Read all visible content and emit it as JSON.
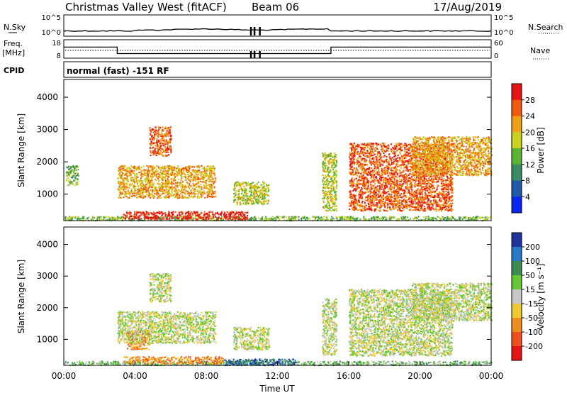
{
  "header": {
    "title": "Christmas Valley West (fitACF)",
    "beam": "Beam 06",
    "date": "17/Aug/2019"
  },
  "left_labels": {
    "nsky": "N.Sky",
    "freq_line1": "Freq.",
    "freq_line2": "[MHz]",
    "cpid": "CPID"
  },
  "right_labels": {
    "nsearch": "N.Search",
    "nave": "Nave"
  },
  "status_panel": {
    "nsky_ticks": [
      "10^5",
      "10^0"
    ],
    "nsearch_ticks": [
      "10^5",
      "10^0"
    ],
    "freq_ticks": [
      "18",
      "8"
    ],
    "nave_ticks": [
      "60",
      "0"
    ],
    "cpid_text": "normal (fast) -151 RF",
    "freq_mhz_schedule": [
      {
        "start_h": 0.0,
        "end_h": 3.0,
        "freq": 14.0
      },
      {
        "start_h": 3.0,
        "end_h": 15.0,
        "freq": 10.5
      },
      {
        "start_h": 15.0,
        "end_h": 24.0,
        "freq": 14.0
      }
    ],
    "data_gaps_h": [
      10.5,
      10.7,
      11.0
    ]
  },
  "chart_data": [
    {
      "type": "heatmap",
      "name": "power-panel",
      "ylabel": "Slant Range [km]",
      "xlabel": "",
      "ylim": [
        180,
        4550
      ],
      "xlim": [
        0,
        24
      ],
      "yticks": [
        "1000",
        "2000",
        "3000",
        "4000"
      ],
      "colorbar": {
        "label": "Power [dB]",
        "ticks": [
          "4",
          "8",
          "12",
          "16",
          "20",
          "24",
          "28"
        ],
        "range": [
          0,
          30
        ],
        "colors": [
          "#0a28f0",
          "#1e5aa8",
          "#3a8c64",
          "#5ab432",
          "#c8d21e",
          "#f0a014",
          "#f05a0a",
          "#e61414"
        ]
      },
      "echo_regions": [
        {
          "t0": 0.0,
          "t1": 24.0,
          "r0": 200,
          "r1": 330,
          "level": 3
        },
        {
          "t0": 3.3,
          "t1": 10.3,
          "r0": 240,
          "r1": 480,
          "level": 7
        },
        {
          "t0": 3.0,
          "t1": 8.5,
          "r0": 900,
          "r1": 1900,
          "level": 5
        },
        {
          "t0": 4.8,
          "t1": 6.0,
          "r0": 2200,
          "r1": 3100,
          "level": 6
        },
        {
          "t0": 0.1,
          "t1": 0.8,
          "r0": 1300,
          "r1": 1900,
          "level": 3
        },
        {
          "t0": 9.5,
          "t1": 11.5,
          "r0": 700,
          "r1": 1400,
          "level": 4
        },
        {
          "t0": 14.5,
          "t1": 15.3,
          "r0": 500,
          "r1": 2300,
          "level": 4
        },
        {
          "t0": 16.0,
          "t1": 21.8,
          "r0": 500,
          "r1": 2600,
          "level": 6
        },
        {
          "t0": 19.5,
          "t1": 24.0,
          "r0": 1600,
          "r1": 2800,
          "level": 5
        }
      ]
    },
    {
      "type": "heatmap",
      "name": "velocity-panel",
      "ylabel": "Slant Range [km]",
      "xlabel": "Time UT",
      "ylim": [
        180,
        4550
      ],
      "xlim": [
        0,
        24
      ],
      "yticks": [
        "1000",
        "2000",
        "3000",
        "4000"
      ],
      "xticks": [
        "00:00",
        "04:00",
        "08:00",
        "12:00",
        "16:00",
        "20:00",
        "00:00"
      ],
      "colorbar": {
        "label": "Velocity [m s⁻¹]",
        "ticks": [
          "200",
          "100",
          "50",
          "15",
          "-15",
          "-50",
          "-100",
          "-200"
        ],
        "range": [
          -250,
          250
        ],
        "colors": [
          "#1e32a0",
          "#2878c8",
          "#3c8c50",
          "#64c832",
          "#c8c8c8",
          "#f0c832",
          "#f08c1e",
          "#f0501e",
          "#e61414"
        ]
      },
      "echo_regions": [
        {
          "t0": 0.0,
          "t1": 24.0,
          "r0": 200,
          "r1": 330,
          "level": 3
        },
        {
          "t0": 3.3,
          "t1": 9.0,
          "r0": 250,
          "r1": 480,
          "level": 6
        },
        {
          "t0": 9.0,
          "t1": 13.0,
          "r0": 200,
          "r1": 400,
          "level": 1
        },
        {
          "t0": 3.5,
          "t1": 4.8,
          "r0": 700,
          "r1": 1300,
          "level": 6
        },
        {
          "t0": 3.0,
          "t1": 8.5,
          "r0": 900,
          "r1": 1900,
          "level": 4
        },
        {
          "t0": 4.8,
          "t1": 6.0,
          "r0": 2200,
          "r1": 3100,
          "level": 4
        },
        {
          "t0": 9.5,
          "t1": 11.5,
          "r0": 700,
          "r1": 1400,
          "level": 4
        },
        {
          "t0": 14.5,
          "t1": 15.3,
          "r0": 500,
          "r1": 2300,
          "level": 4
        },
        {
          "t0": 16.0,
          "t1": 21.8,
          "r0": 500,
          "r1": 2600,
          "level": 4
        },
        {
          "t0": 19.5,
          "t1": 24.0,
          "r0": 1600,
          "r1": 2800,
          "level": 4
        }
      ]
    }
  ]
}
